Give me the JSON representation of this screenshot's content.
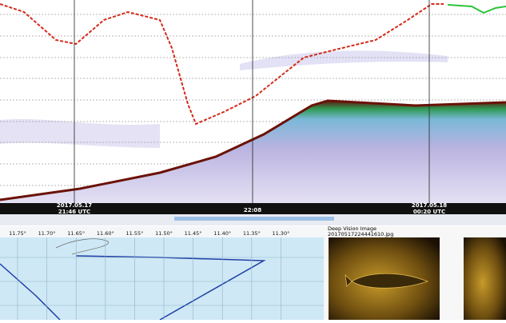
{
  "echogram": {
    "start_date": "2017.05.17",
    "start_time": "21:46 UTC",
    "mid_time": "22:08",
    "end_date": "2017.05.18",
    "end_time": "00:20 UTC"
  },
  "map": {
    "longitudes": [
      "11.75°",
      "11.70°",
      "11.65°",
      "11.60°",
      "11.55°",
      "11.50°",
      "11.45°",
      "11.40°",
      "11.35°",
      "11.30°"
    ]
  },
  "image_panel": {
    "title": "Deep Vision Image",
    "filename": "20170517224441610.jpg"
  }
}
